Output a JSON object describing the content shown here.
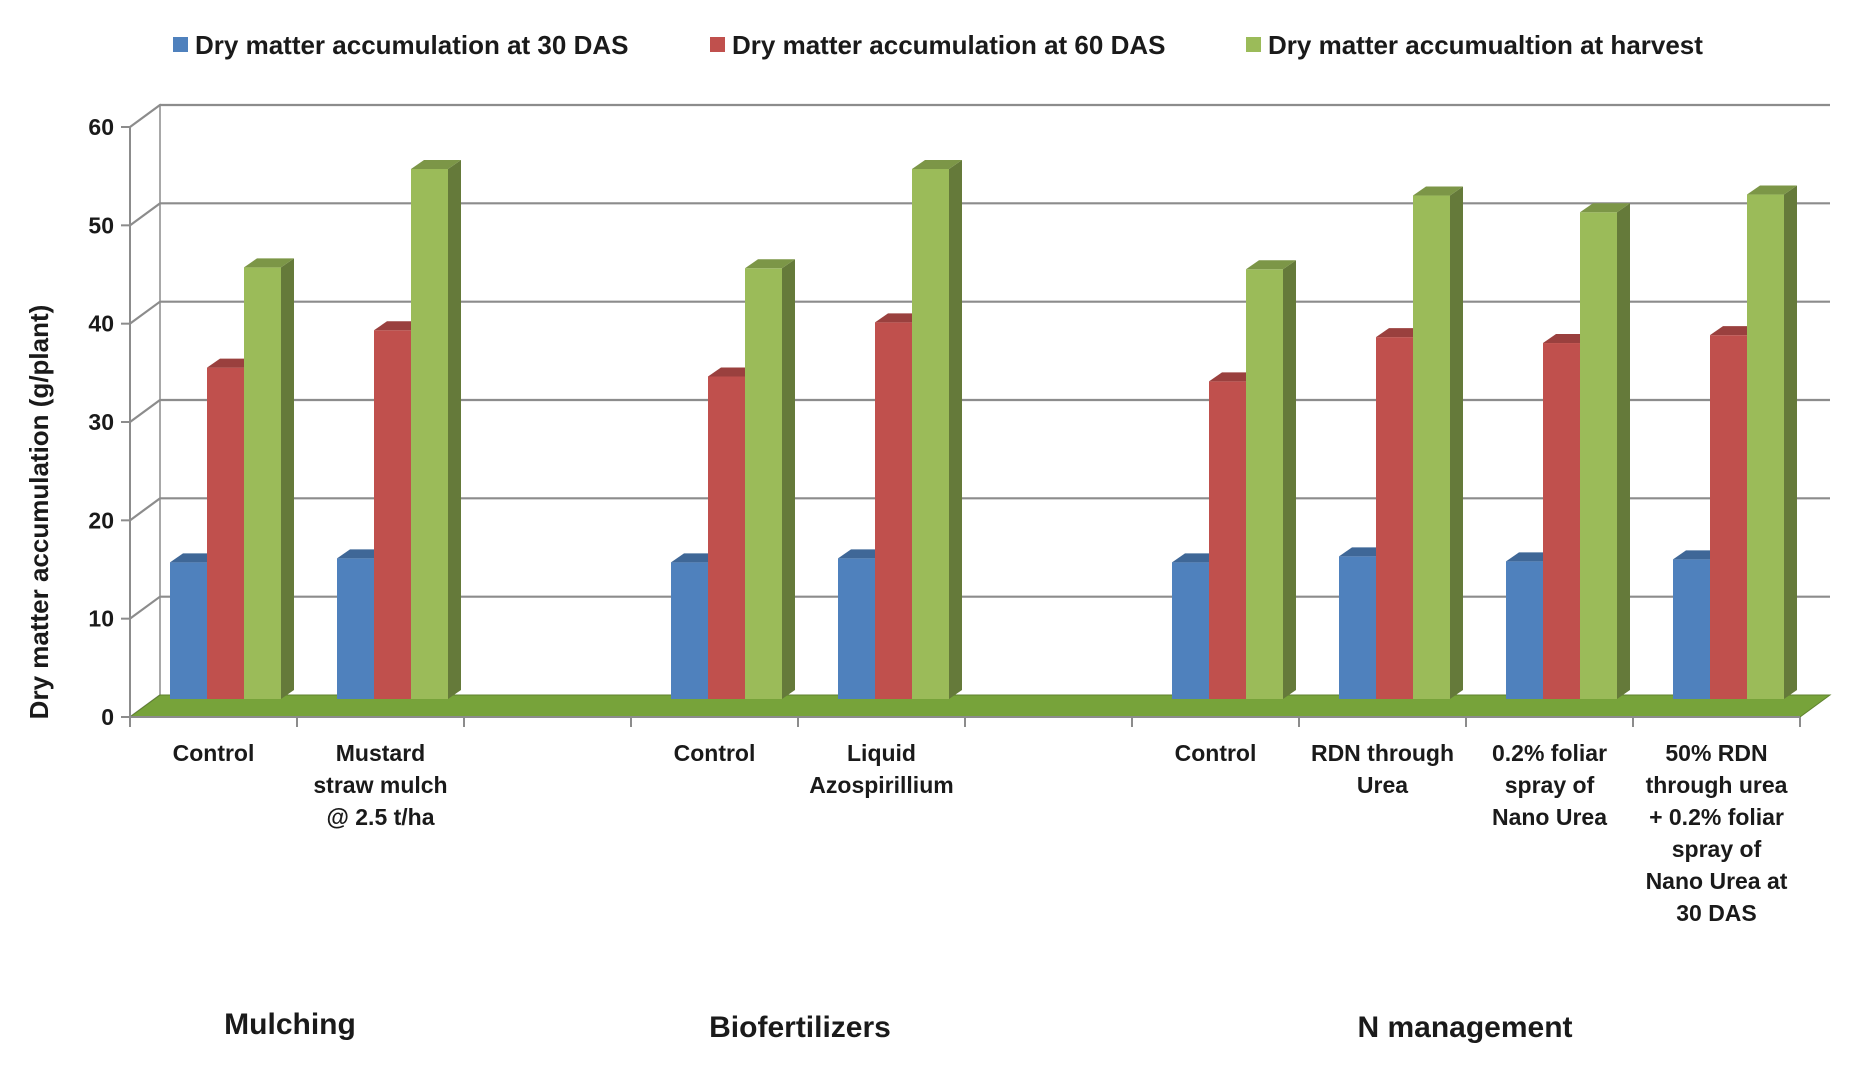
{
  "chart_data": {
    "type": "bar",
    "style": "3d-clustered-column",
    "ylabel": "Dry matter accumulation (g/plant)",
    "xlabel": "",
    "ylim": [
      0,
      60
    ],
    "yticks": [
      0,
      10,
      20,
      30,
      40,
      50,
      60
    ],
    "grid": true,
    "legend_position": "top",
    "categories": [
      "Control",
      "Mustard straw mulch @ 2.5 t/ha",
      "",
      "Control",
      "Liquid Azospirillium",
      "",
      "Control",
      "RDN through Urea",
      "0.2% foliar spray of Nano Urea",
      "50% RDN through urea + 0.2% foliar spray of Nano Urea at 30 DAS"
    ],
    "category_label_lines": [
      [
        "Control"
      ],
      [
        "Mustard",
        "straw mulch",
        "@ 2.5 t/ha"
      ],
      [],
      [
        "Control"
      ],
      [
        "Liquid",
        "Azospirillium"
      ],
      [],
      [
        "Control"
      ],
      [
        "RDN through",
        "Urea"
      ],
      [
        "0.2% foliar",
        "spray of",
        "Nano Urea"
      ],
      [
        "50% RDN",
        "through urea",
        "+ 0.2% foliar",
        "spray of",
        "Nano Urea at",
        "30 DAS"
      ]
    ],
    "series": [
      {
        "name": "Dry matter accumulation at 30 DAS",
        "color": "#4f81bd",
        "values": [
          13.9,
          14.3,
          null,
          13.9,
          14.3,
          null,
          13.9,
          14.5,
          14.0,
          14.2
        ]
      },
      {
        "name": "Dry matter accumulation at 60 DAS",
        "color": "#c0504d",
        "values": [
          33.7,
          37.5,
          null,
          32.8,
          38.3,
          null,
          32.3,
          36.8,
          36.2,
          37.0
        ]
      },
      {
        "name": "Dry matter accumulation at harvest",
        "color": "#9bbb59",
        "values": [
          43.9,
          53.9,
          null,
          43.8,
          53.9,
          null,
          43.7,
          51.2,
          49.5,
          51.3
        ]
      }
    ],
    "groups": [
      {
        "label": "Mulching"
      },
      {
        "label": "Biofertilizers"
      },
      {
        "label": "N management"
      }
    ],
    "legend_text": [
      "Dry matter accumulation at 30 DAS",
      "Dry matter accumulation at 60 DAS",
      "Dry matter accumualtion at harvest"
    ],
    "floor_color": "#77a33a",
    "gridline_color": "#8c8c8c"
  }
}
